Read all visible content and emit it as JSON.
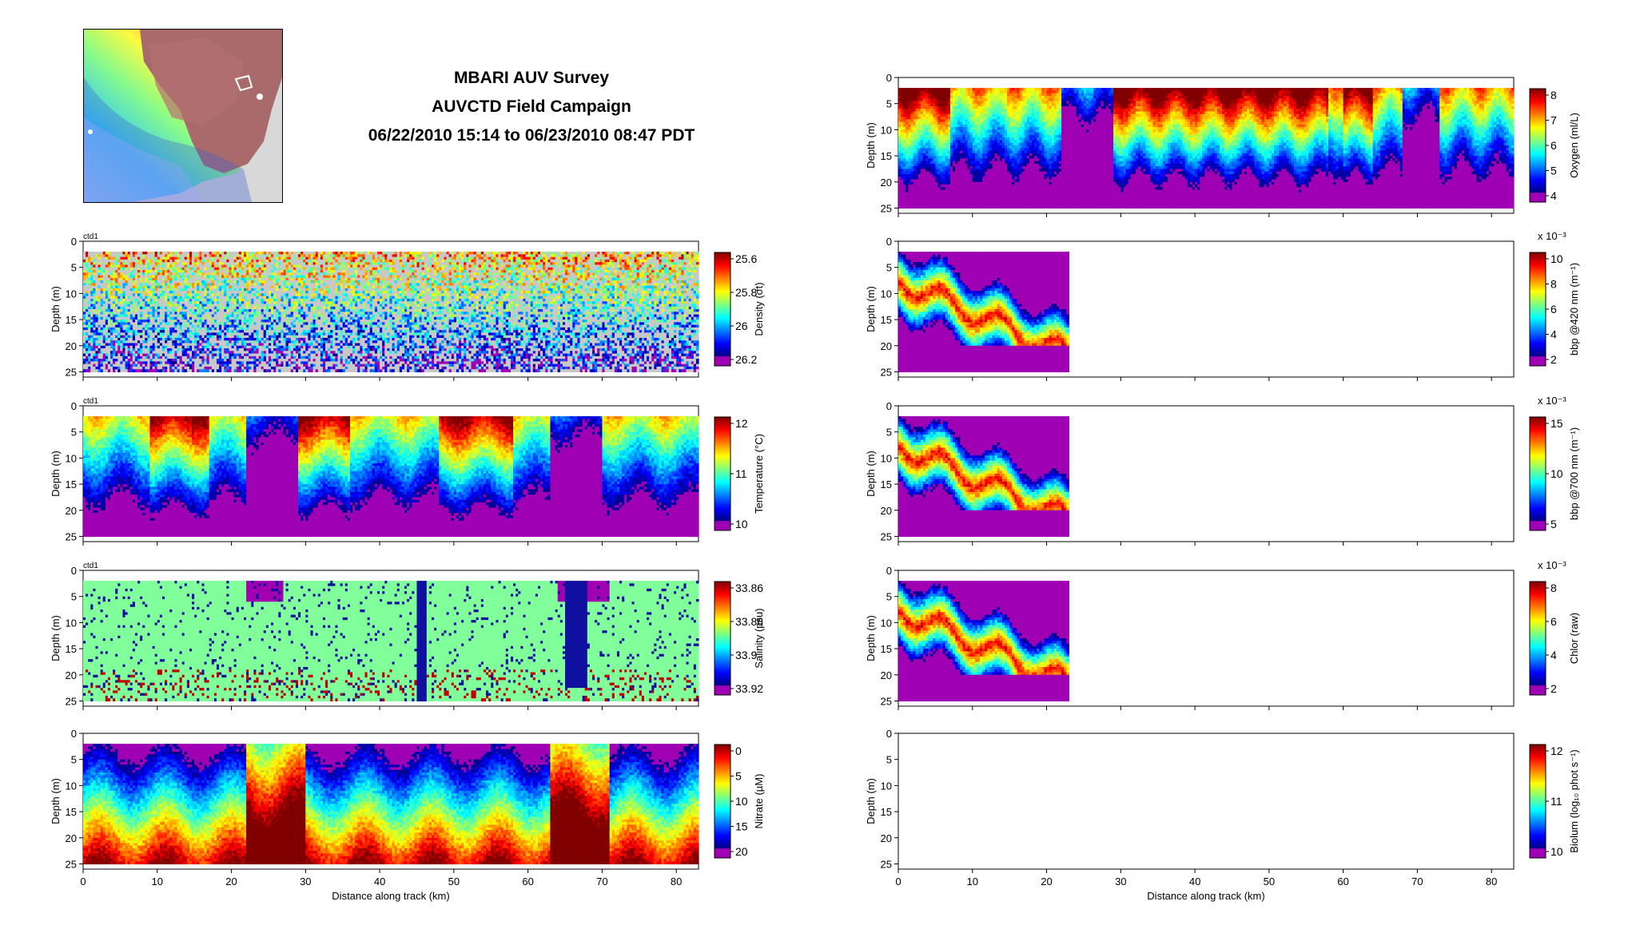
{
  "header": {
    "title": "MBARI AUV Survey",
    "subtitle": "AUVCTD Field Campaign",
    "date_range": "06/22/2010 15:14 to 06/23/2010 08:47 PDT"
  },
  "colors": {
    "jet": [
      "#8b008b",
      "#9400d3",
      "#00008f",
      "#0000ff",
      "#0080ff",
      "#00ffff",
      "#80ff80",
      "#ffff00",
      "#ff8000",
      "#ff0000",
      "#800000"
    ]
  },
  "chart_data": [
    {
      "id": "density",
      "type": "heatmap",
      "tag": "ctd1",
      "xlabel": "",
      "ylabel": "Depth (m)",
      "xlim": [
        0,
        83
      ],
      "ylim": [
        0,
        26
      ],
      "x_ticks": [],
      "y_ticks": [
        0,
        5,
        10,
        15,
        20,
        25
      ],
      "colorbar_label": "Density (σt)",
      "colorbar_ticks": [
        "25.6",
        "25.8",
        "26",
        "26.2"
      ],
      "exponent": "",
      "extent_km": 83,
      "pattern": "density"
    },
    {
      "id": "temperature",
      "type": "heatmap",
      "tag": "ctd1",
      "xlabel": "",
      "ylabel": "Depth (m)",
      "xlim": [
        0,
        83
      ],
      "ylim": [
        0,
        26
      ],
      "x_ticks": [],
      "y_ticks": [
        0,
        5,
        10,
        15,
        20,
        25
      ],
      "colorbar_label": "Temperature (°C)",
      "colorbar_ticks": [
        "12",
        "11",
        "10"
      ],
      "exponent": "",
      "extent_km": 83,
      "pattern": "temperature"
    },
    {
      "id": "salinity",
      "type": "heatmap",
      "tag": "ctd1",
      "xlabel": "",
      "ylabel": "Depth (m)",
      "xlim": [
        0,
        83
      ],
      "ylim": [
        0,
        26
      ],
      "x_ticks": [],
      "y_ticks": [
        0,
        5,
        10,
        15,
        20,
        25
      ],
      "colorbar_label": "Salinity (psu)",
      "colorbar_ticks": [
        "33.86",
        "33.88",
        "33.9",
        "33.92"
      ],
      "exponent": "",
      "extent_km": 83,
      "pattern": "salinity"
    },
    {
      "id": "nitrate",
      "type": "heatmap",
      "tag": "",
      "xlabel": "Distance along track (km)",
      "ylabel": "Depth (m)",
      "xlim": [
        0,
        83
      ],
      "ylim": [
        0,
        26
      ],
      "x_ticks": [
        0,
        10,
        20,
        30,
        40,
        50,
        60,
        70,
        80
      ],
      "y_ticks": [
        0,
        5,
        10,
        15,
        20,
        25
      ],
      "colorbar_label": "Nitrate (µM)",
      "colorbar_ticks": [
        "0",
        "5",
        "10",
        "15",
        "20"
      ],
      "exponent": "",
      "extent_km": 83,
      "pattern": "nitrate"
    },
    {
      "id": "oxygen",
      "type": "heatmap",
      "tag": "",
      "xlabel": "",
      "ylabel": "Depth (m)",
      "xlim": [
        0,
        83
      ],
      "ylim": [
        0,
        26
      ],
      "x_ticks": [],
      "y_ticks": [
        0,
        5,
        10,
        15,
        20,
        25
      ],
      "colorbar_label": "Oxygen (ml/L)",
      "colorbar_ticks": [
        "8",
        "7",
        "6",
        "5",
        "4"
      ],
      "exponent": "",
      "extent_km": 83,
      "pattern": "oxygen"
    },
    {
      "id": "bbp420",
      "type": "heatmap",
      "tag": "",
      "xlabel": "",
      "ylabel": "Depth (m)",
      "xlim": [
        0,
        83
      ],
      "ylim": [
        0,
        26
      ],
      "x_ticks": [],
      "y_ticks": [
        0,
        5,
        10,
        15,
        20,
        25
      ],
      "colorbar_label": "bbp @420 nm (m⁻¹)",
      "colorbar_ticks": [
        "10",
        "8",
        "6",
        "4",
        "2"
      ],
      "exponent": "x 10⁻³",
      "extent_km": 23,
      "pattern": "bio"
    },
    {
      "id": "bbp700",
      "type": "heatmap",
      "tag": "",
      "xlabel": "",
      "ylabel": "Depth (m)",
      "xlim": [
        0,
        83
      ],
      "ylim": [
        0,
        26
      ],
      "x_ticks": [],
      "y_ticks": [
        0,
        5,
        10,
        15,
        20,
        25
      ],
      "colorbar_label": "bbp @700 nm (m⁻¹)",
      "colorbar_ticks": [
        "15",
        "10",
        "5"
      ],
      "exponent": "x 10⁻³",
      "extent_km": 23,
      "pattern": "bio"
    },
    {
      "id": "chlor",
      "type": "heatmap",
      "tag": "",
      "xlabel": "",
      "ylabel": "Depth (m)",
      "xlim": [
        0,
        83
      ],
      "ylim": [
        0,
        26
      ],
      "x_ticks": [],
      "y_ticks": [
        0,
        5,
        10,
        15,
        20,
        25
      ],
      "colorbar_label": "Chlor (raw)",
      "colorbar_ticks": [
        "8",
        "6",
        "4",
        "2"
      ],
      "exponent": "x 10⁻³",
      "extent_km": 23,
      "pattern": "bio"
    },
    {
      "id": "biolum",
      "type": "heatmap",
      "tag": "",
      "xlabel": "Distance along track (km)",
      "ylabel": "Depth (m)",
      "xlim": [
        0,
        83
      ],
      "ylim": [
        0,
        26
      ],
      "x_ticks": [
        0,
        10,
        20,
        30,
        40,
        50,
        60,
        70,
        80
      ],
      "y_ticks": [
        0,
        5,
        10,
        15,
        20,
        25
      ],
      "colorbar_label": "Biolum (log₁₀ phot s⁻¹)",
      "colorbar_ticks": [
        "12",
        "11",
        "10"
      ],
      "exponent": "",
      "extent_km": 0,
      "pattern": "none"
    }
  ]
}
